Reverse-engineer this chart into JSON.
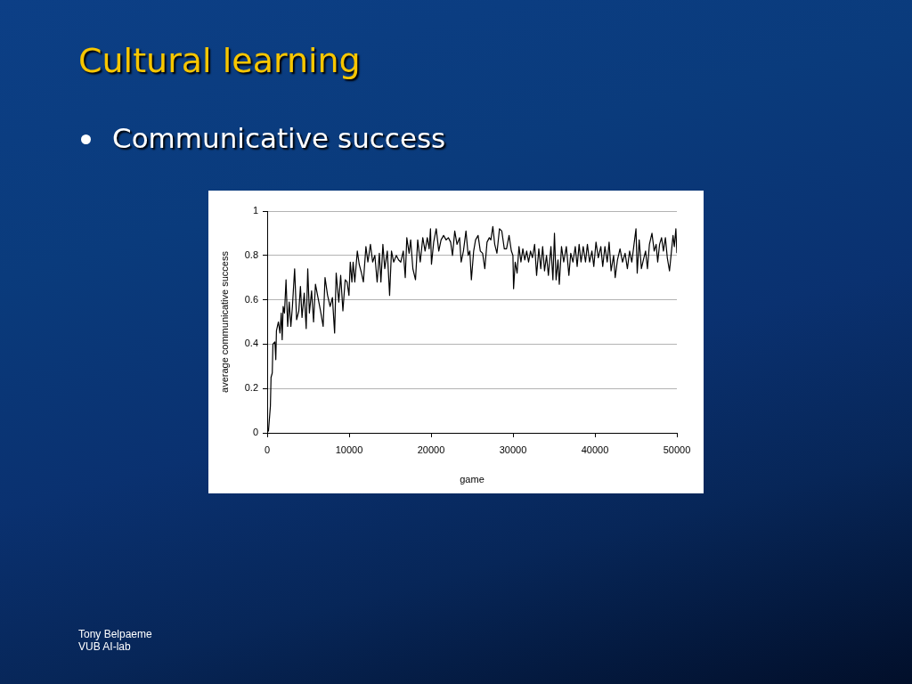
{
  "chart_data": {
    "type": "line",
    "title": "Cultural learning",
    "subtitle": "Communicative success",
    "xlabel": "game",
    "ylabel": "average communicative success",
    "annotations": [
      "Tony Belpaeme",
      "VUB AI-lab"
    ],
    "color": "#000000",
    "grid": "y",
    "xlim": [
      0,
      50000
    ],
    "xticks": [
      0,
      10000,
      20000,
      30000,
      40000,
      50000
    ],
    "ylim": [
      0,
      1
    ],
    "yticks": [
      0,
      0.2,
      0.4,
      0.6,
      0.8,
      1
    ],
    "x": [
      0,
      160,
      390,
      470,
      620,
      700,
      940,
      1050,
      1130,
      1370,
      1560,
      1720,
      1830,
      1950,
      2110,
      2300,
      2500,
      2690,
      2890,
      3080,
      3350,
      3590,
      3860,
      4060,
      4250,
      4520,
      4760,
      4950,
      5150,
      5420,
      5660,
      5890,
      6200,
      6510,
      6830,
      7060,
      7370,
      7680,
      7960,
      8230,
      8420,
      8740,
      8970,
      9240,
      9520,
      9750,
      9980,
      10140,
      10340,
      10490,
      10690,
      11000,
      11230,
      11510,
      11740,
      12050,
      12290,
      12600,
      12870,
      13140,
      13420,
      13690,
      13880,
      14120,
      14350,
      14660,
      14940,
      15170,
      15440,
      15760,
      16030,
      16300,
      16610,
      16850,
      17040,
      17320,
      17510,
      17780,
      18100,
      18370,
      18680,
      18990,
      19270,
      19540,
      19770,
      19930,
      20050,
      20320,
      20630,
      20940,
      21220,
      21530,
      21840,
      22110,
      22390,
      22620,
      22890,
      23170,
      23480,
      23670,
      23950,
      24260,
      24530,
      24730,
      24920,
      25200,
      25430,
      25740,
      26010,
      26290,
      26560,
      26830,
      27110,
      27300,
      27540,
      27770,
      28040,
      28350,
      28630,
      28940,
      29210,
      29520,
      29800,
      29990,
      30070,
      30270,
      30500,
      30730,
      30970,
      31200,
      31440,
      31670,
      31900,
      32140,
      32370,
      32640,
      32880,
      33150,
      33390,
      33620,
      33850,
      34090,
      34320,
      34630,
      34870,
      35060,
      35260,
      35490,
      35650,
      35920,
      36190,
      36510,
      36820,
      37050,
      37320,
      37600,
      37830,
      38070,
      38300,
      38570,
      38850,
      39080,
      39350,
      39630,
      39860,
      40130,
      40410,
      40720,
      40950,
      41220,
      41500,
      41730,
      41970,
      42280,
      42470,
      42750,
      43060,
      43370,
      43680,
      43960,
      44230,
      44500,
      44770,
      45010,
      45160,
      45400,
      45670,
      45910,
      46180,
      46410,
      46650,
      46960,
      47230,
      47470,
      47660,
      47890,
      48130,
      48360,
      48600,
      48830,
      49100,
      49340,
      49530,
      49690,
      49880,
      50000
    ],
    "values": [
      0,
      0.01,
      0.12,
      0.25,
      0.27,
      0.4,
      0.41,
      0.33,
      0.46,
      0.5,
      0.45,
      0.54,
      0.42,
      0.57,
      0.54,
      0.69,
      0.48,
      0.59,
      0.48,
      0.57,
      0.74,
      0.51,
      0.55,
      0.66,
      0.52,
      0.63,
      0.47,
      0.74,
      0.54,
      0.64,
      0.5,
      0.67,
      0.61,
      0.55,
      0.48,
      0.7,
      0.62,
      0.57,
      0.61,
      0.45,
      0.72,
      0.59,
      0.71,
      0.55,
      0.69,
      0.68,
      0.62,
      0.77,
      0.68,
      0.77,
      0.68,
      0.82,
      0.76,
      0.72,
      0.68,
      0.84,
      0.77,
      0.85,
      0.77,
      0.8,
      0.68,
      0.81,
      0.68,
      0.85,
      0.74,
      0.82,
      0.62,
      0.82,
      0.77,
      0.8,
      0.78,
      0.77,
      0.82,
      0.7,
      0.88,
      0.81,
      0.87,
      0.74,
      0.69,
      0.87,
      0.77,
      0.88,
      0.82,
      0.88,
      0.83,
      0.92,
      0.76,
      0.86,
      0.92,
      0.82,
      0.87,
      0.89,
      0.87,
      0.88,
      0.86,
      0.8,
      0.91,
      0.85,
      0.88,
      0.77,
      0.82,
      0.91,
      0.8,
      0.82,
      0.69,
      0.82,
      0.87,
      0.89,
      0.82,
      0.81,
      0.74,
      0.86,
      0.88,
      0.87,
      0.93,
      0.85,
      0.81,
      0.92,
      0.91,
      0.83,
      0.83,
      0.89,
      0.82,
      0.8,
      0.65,
      0.77,
      0.72,
      0.84,
      0.77,
      0.83,
      0.78,
      0.82,
      0.77,
      0.82,
      0.79,
      0.85,
      0.71,
      0.83,
      0.74,
      0.84,
      0.73,
      0.8,
      0.71,
      0.84,
      0.69,
      0.9,
      0.69,
      0.78,
      0.67,
      0.84,
      0.77,
      0.84,
      0.71,
      0.81,
      0.77,
      0.84,
      0.75,
      0.85,
      0.77,
      0.84,
      0.77,
      0.85,
      0.77,
      0.82,
      0.75,
      0.86,
      0.79,
      0.84,
      0.75,
      0.84,
      0.77,
      0.86,
      0.73,
      0.8,
      0.7,
      0.78,
      0.83,
      0.77,
      0.81,
      0.74,
      0.82,
      0.77,
      0.85,
      0.92,
      0.72,
      0.87,
      0.74,
      0.78,
      0.82,
      0.74,
      0.85,
      0.9,
      0.82,
      0.85,
      0.77,
      0.85,
      0.88,
      0.82,
      0.88,
      0.79,
      0.73,
      0.82,
      0.89,
      0.84,
      0.92,
      0.81
    ]
  }
}
